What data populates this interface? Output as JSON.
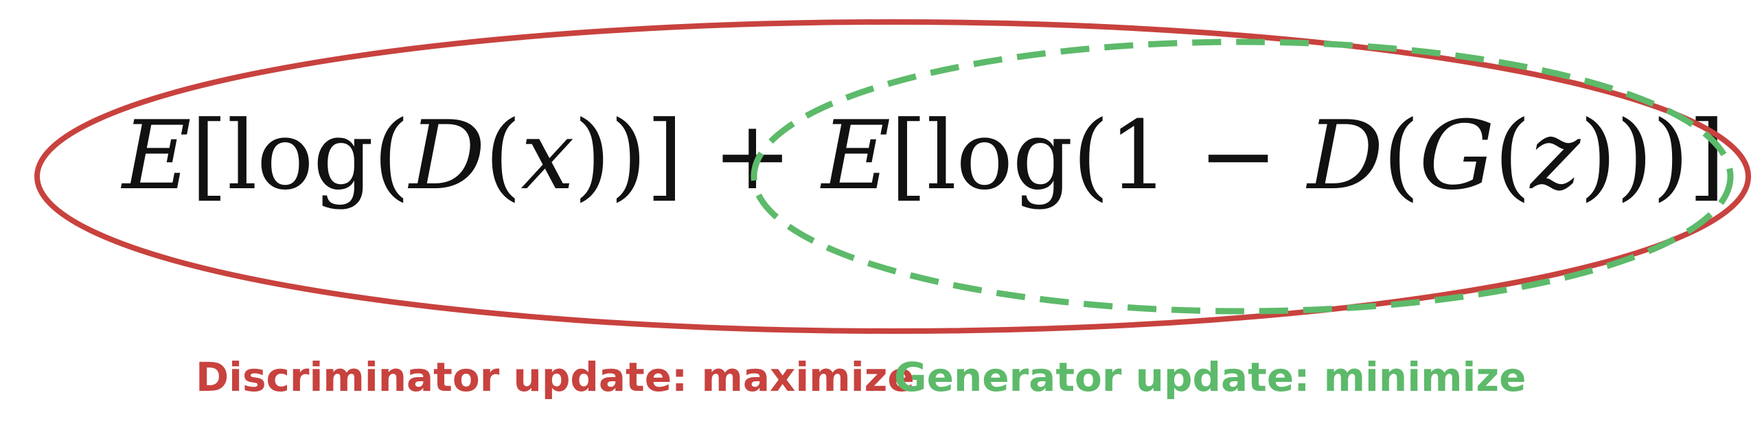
{
  "formula": {
    "full": "E[log(D(x))] + E[log(1 − D(G(z)))]",
    "term1": {
      "E": "E",
      "lb": "[",
      "log": "log",
      "p1": "(",
      "D": "D",
      "p2": "(",
      "x": "x",
      "close": "))]"
    },
    "plus": "+",
    "term2": {
      "E": "E",
      "lb": "[",
      "log": "log",
      "p1": "(",
      "one": "1",
      "minus": "−",
      "D": "D",
      "p2": "(",
      "G": "G",
      "p3": "(",
      "z": "z",
      "close": ")))]"
    }
  },
  "labels": {
    "discriminator": "Discriminator update: maximize",
    "generator": "Generator update: minimize"
  },
  "colors": {
    "discriminator": "#c8423e",
    "generator": "#5dba6a",
    "formula_text": "#111111"
  }
}
